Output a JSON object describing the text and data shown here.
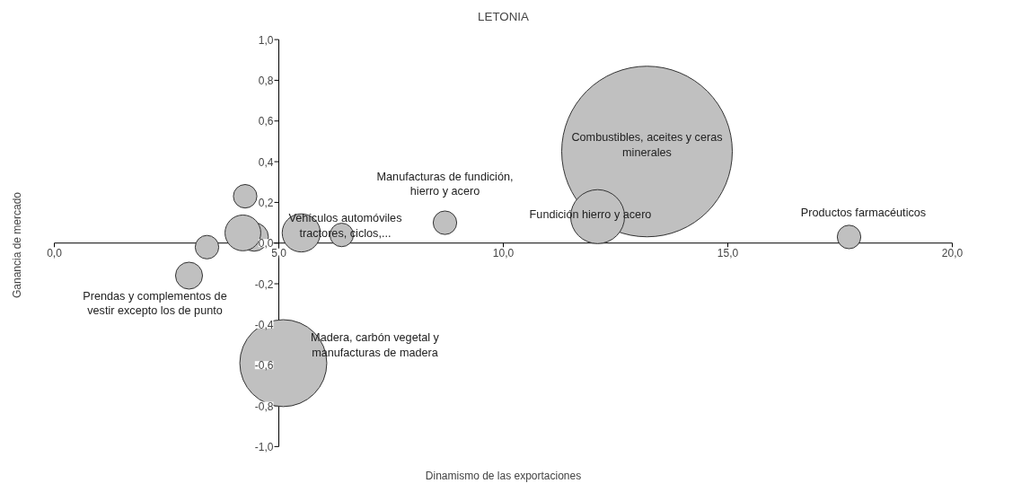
{
  "chart_data": {
    "type": "bubble",
    "title": "LETONIA",
    "xlabel": "Dinamismo de las exportaciones",
    "ylabel": "Ganancia de mercado",
    "x": [
      13.2,
      12.1,
      17.7,
      8.7,
      6.4,
      5.5,
      4.45,
      4.2,
      4.25,
      3.4,
      3.0,
      5.1
    ],
    "values": [
      0.45,
      0.13,
      0.03,
      0.1,
      0.04,
      0.05,
      0.03,
      0.05,
      0.23,
      -0.02,
      -0.16,
      -0.59
    ],
    "sizes": [
      1,
      0.1,
      0.019,
      0.019,
      0.019,
      0.05,
      0.028,
      0.044,
      0.019,
      0.019,
      0.025,
      0.26
    ],
    "value_labels": [
      "Combustibles, aceites y ceras\nminerales",
      "Fundición hierro y acero",
      "Productos farmacéuticos",
      "Manufacturas de fundición,\nhierro y acero",
      null,
      "Vehículos automóviles\ntractores, ciclos,...",
      null,
      null,
      null,
      null,
      "Prendas y complementos de\nvestir excepto los de punto",
      "Madera, carbón vegetal y\nmanufacturas de madera"
    ],
    "color": "#c0c0c0",
    "xlim": [
      0,
      20
    ],
    "xticks": [
      {
        "value": 0,
        "label": "0,0"
      },
      {
        "value": 5,
        "label": "5,0"
      },
      {
        "value": 10,
        "label": "10,0"
      },
      {
        "value": 15,
        "label": "15,0"
      },
      {
        "value": 20,
        "label": "20,0"
      }
    ],
    "ylim": [
      -1,
      1
    ],
    "yticks": [
      {
        "value": -1,
        "label": "-1,0"
      },
      {
        "value": -0.8,
        "label": "-0,8"
      },
      {
        "value": -0.6,
        "label": "-0,6"
      },
      {
        "value": -0.4,
        "label": "-0,4"
      },
      {
        "value": -0.2,
        "label": "-0,2"
      },
      {
        "value": 0,
        "label": "0,0"
      },
      {
        "value": 0.2,
        "label": "0,2"
      },
      {
        "value": 0.4,
        "label": "0,4"
      },
      {
        "value": 0.6,
        "label": "0,6"
      },
      {
        "value": 0.8,
        "label": "0,8"
      },
      {
        "value": 1,
        "label": "1,0"
      }
    ],
    "grid": false
  }
}
